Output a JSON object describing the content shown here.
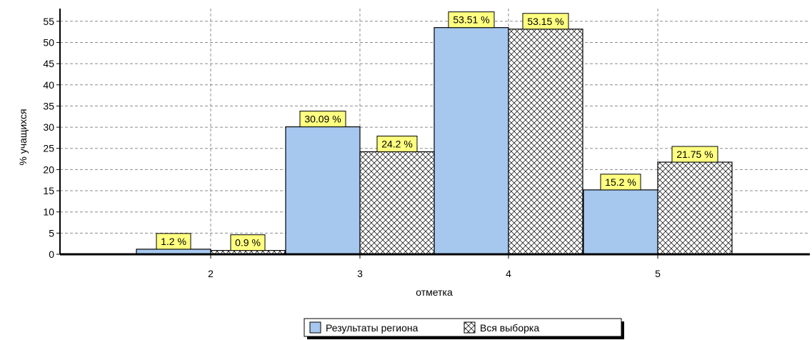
{
  "chart_data": {
    "type": "bar",
    "title": "",
    "xlabel": "отметка",
    "ylabel": "% учащихся",
    "categories": [
      "2",
      "3",
      "4",
      "5"
    ],
    "series": [
      {
        "name": "Результаты региона",
        "values": [
          1.2,
          30.09,
          53.51,
          15.2
        ],
        "labels": [
          "1.2 %",
          "30.09 %",
          "53.51 %",
          "15.2 %"
        ],
        "color": "#a6c8ef",
        "pattern": "solid"
      },
      {
        "name": "Вся выборка",
        "values": [
          0.9,
          24.2,
          53.15,
          21.75
        ],
        "labels": [
          "0.9 %",
          "24.2 %",
          "53.15 %",
          "21.75 %"
        ],
        "color": "#ffffff",
        "pattern": "crosshatch"
      }
    ],
    "ylim": [
      0,
      58
    ],
    "yticks": [
      "0",
      "5",
      "10",
      "15",
      "20",
      "25",
      "30",
      "35",
      "40",
      "45",
      "50",
      "55"
    ],
    "grid": true,
    "data_label_color": "#ffff80",
    "legend_placement": "bottom-center"
  }
}
